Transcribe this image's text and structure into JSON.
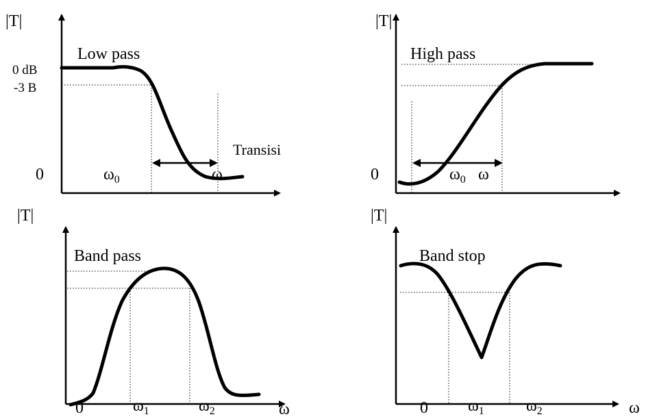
{
  "panels": {
    "low_pass": {
      "title": "Low pass",
      "y_axis_label": "|T|",
      "y_tick_0db": "0 dB",
      "y_tick_3db": "-3 B",
      "y_tick_zero": "0",
      "omega0_label": "ω",
      "omega0_sub": "0",
      "omega_label": "ω",
      "transition_label": "Transisi"
    },
    "high_pass": {
      "title": "High pass",
      "y_axis_label": "|T|",
      "y_tick_zero": "0",
      "omega0_label": "ω",
      "omega0_sub": "0",
      "omega_label": "ω"
    },
    "band_pass": {
      "title": "Band pass",
      "y_axis_label": "|T|",
      "origin_label": "0",
      "omega1_label": "ω",
      "omega1_sub": "1",
      "omega2_label": "ω",
      "omega2_sub": "2",
      "x_axis_label": "ω"
    },
    "band_stop": {
      "title": "Band stop",
      "y_axis_label": "|T|",
      "origin_label": "0",
      "omega1_label": "ω",
      "omega1_sub": "1",
      "omega2_label": "ω",
      "omega2_sub": "2",
      "x_axis_label": "ω"
    }
  }
}
